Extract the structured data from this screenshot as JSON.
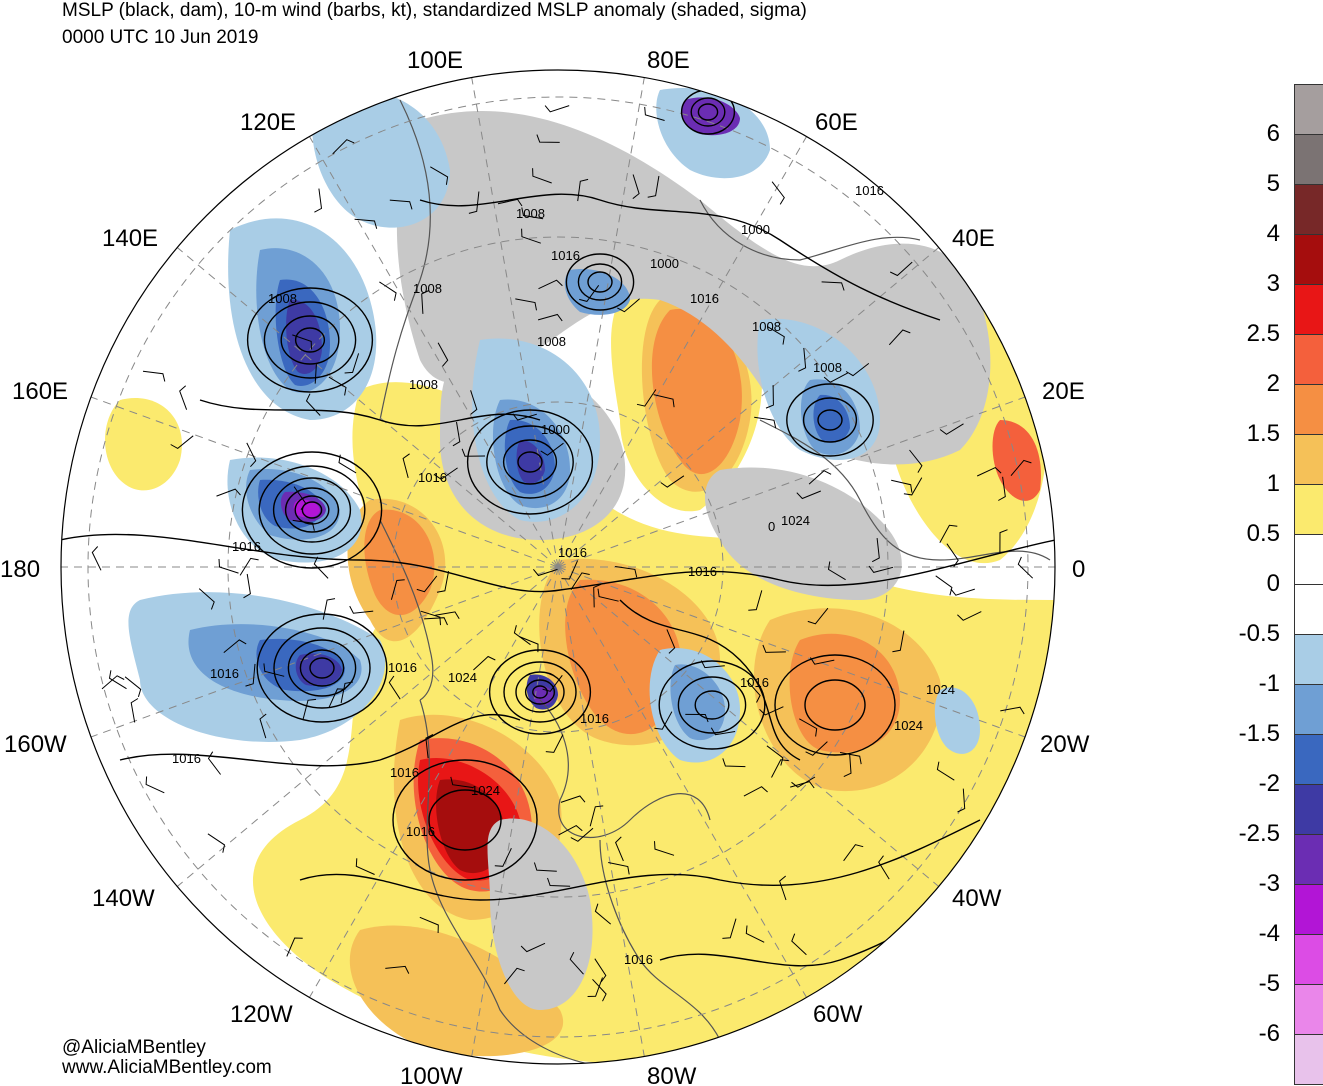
{
  "title": {
    "line1": "MSLP (black, dam), 10-m wind (barbs, kt), standardized MSLP anomaly (shaded, sigma)",
    "line2": "0000 UTC 10 Jun 2019"
  },
  "map": {
    "projection": "north-polar-stereographic",
    "longitude_labels": [
      {
        "text": "100E",
        "deg": 100
      },
      {
        "text": "80E",
        "deg": 80
      },
      {
        "text": "120E",
        "deg": 120
      },
      {
        "text": "60E",
        "deg": 60
      },
      {
        "text": "140E",
        "deg": 140
      },
      {
        "text": "40E",
        "deg": 40
      },
      {
        "text": "160E",
        "deg": 160
      },
      {
        "text": "20E",
        "deg": 20
      },
      {
        "text": "180",
        "deg": 180
      },
      {
        "text": "0",
        "deg": 0
      },
      {
        "text": "160W",
        "deg": -160
      },
      {
        "text": "20W",
        "deg": -20
      },
      {
        "text": "140W",
        "deg": -140
      },
      {
        "text": "40W",
        "deg": -40
      },
      {
        "text": "120W",
        "deg": -120
      },
      {
        "text": "60W",
        "deg": -60
      },
      {
        "text": "100W",
        "deg": -100
      },
      {
        "text": "80W",
        "deg": -80
      }
    ],
    "isobar_labels": [
      "1008",
      "1016",
      "1000",
      "1000",
      "1008",
      "1008",
      "1016",
      "1008",
      "1008",
      "1008",
      "1008",
      "1000",
      "1016",
      "1016",
      "1024",
      "1016",
      "1016",
      "1016",
      "1016",
      "1024",
      "1024",
      "1016",
      "1016",
      "1024",
      "1016",
      "1024",
      "1016",
      "1016",
      "1016",
      "1016",
      "0"
    ],
    "features": {
      "lows": [
        {
          "name": "kamchatka-low",
          "anomaly": -3
        },
        {
          "name": "north-pacific-low",
          "anomaly": -4
        },
        {
          "name": "gulf-of-alaska-low",
          "anomaly": -3
        },
        {
          "name": "hudson-bay-low",
          "anomaly": -3
        },
        {
          "name": "kara-sea-low",
          "anomaly": -3
        },
        {
          "name": "scandinavia-low",
          "anomaly": -2.5
        },
        {
          "name": "siberia-low",
          "anomaly": -2.5
        },
        {
          "name": "north-atlantic-low",
          "anomaly": -1.5
        }
      ],
      "highs": [
        {
          "name": "western-north-america-high",
          "anomaly": 3
        },
        {
          "name": "central-atlantic-high",
          "anomaly": 2
        }
      ]
    }
  },
  "colorbar": {
    "labels": [
      "6",
      "5",
      "4",
      "3",
      "2.5",
      "2",
      "1.5",
      "1",
      "0.5",
      "0",
      "-0.5",
      "-1",
      "-1.5",
      "-2",
      "-2.5",
      "-3",
      "-4",
      "-5",
      "-6"
    ],
    "colors": [
      "#a59e9e",
      "#7b7373",
      "#772828",
      "#a50d0d",
      "#e81616",
      "#f4603c",
      "#f58f43",
      "#f5c158",
      "#fbea6e",
      "#ffffff",
      "#ffffff",
      "#a9cde6",
      "#6f9fd4",
      "#3a68bf",
      "#3e3aa4",
      "#6b2db3",
      "#b215d6",
      "#dc4ce5",
      "#ea86ea",
      "#e8c2eb"
    ]
  },
  "credits": {
    "line1": "@AliciaMBentley",
    "line2": "www.AliciaMBentley.com"
  }
}
